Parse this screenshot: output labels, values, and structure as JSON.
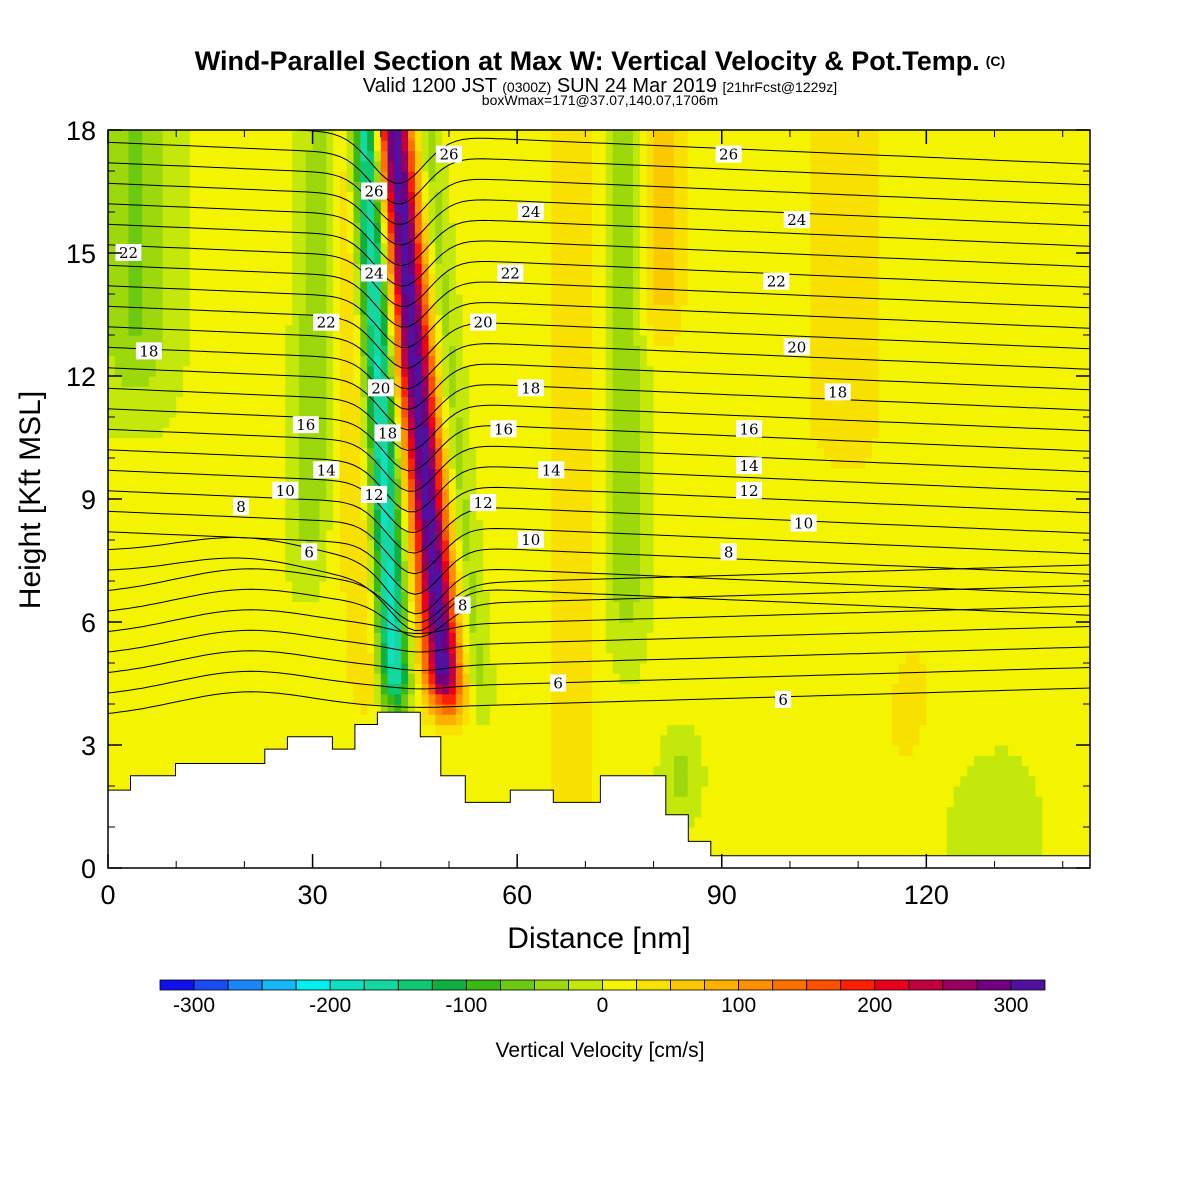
{
  "chart_data": {
    "type": "heatmap",
    "title": "Wind-Parallel Section at Max W: Vertical Velocity & Pot.Temp.",
    "title_mark": "(C)",
    "subtitle_parts": [
      "Valid 1200 JST",
      "(0300Z)",
      "SUN 24 Mar 2019",
      "[21hrFcst@1229z]"
    ],
    "subtitle2": "boxWmax=171@37.07,140.07,1706m",
    "xlabel": "Distance [nm]",
    "ylabel": "Height [Kft MSL]",
    "xlim": [
      0,
      144
    ],
    "ylim": [
      0,
      18
    ],
    "x_ticks": [
      0,
      30,
      60,
      90,
      120
    ],
    "y_ticks": [
      0,
      3,
      6,
      9,
      12,
      15,
      18
    ],
    "x_tick_labels": [
      "0",
      "30",
      "60",
      "90",
      "120"
    ],
    "y_tick_labels": [
      "0",
      "3",
      "6",
      "9",
      "12",
      "15",
      "18"
    ],
    "colorbar": {
      "label": "Vertical Velocity [cm/s]",
      "range": [
        -325,
        325
      ],
      "step": 25,
      "tick_values": [
        -300,
        -200,
        -100,
        0,
        100,
        200,
        300
      ],
      "tick_labels": [
        "-300",
        "-200",
        "-100",
        "0",
        "100",
        "200",
        "300"
      ],
      "colors": [
        "#1010ee",
        "#1a4cf5",
        "#1a86f7",
        "#14b8f6",
        "#00f0f0",
        "#10e0c0",
        "#14d8a0",
        "#10c870",
        "#10b040",
        "#3cb814",
        "#6cc810",
        "#9cd80c",
        "#c4e80c",
        "#f4f400",
        "#f8e000",
        "#fcc800",
        "#fcb000",
        "#fc9000",
        "#fc7000",
        "#fc5000",
        "#fc2000",
        "#e8001c",
        "#c00040",
        "#980060",
        "#700080",
        "#5010a0"
      ]
    },
    "contour_field": "Potential temperature (contour labels, deg C)",
    "contour_labels": [
      {
        "v": "26",
        "x": 50.0,
        "y": 17.4
      },
      {
        "v": "26",
        "x": 39.0,
        "y": 16.5
      },
      {
        "v": "26",
        "x": 91.0,
        "y": 17.4
      },
      {
        "v": "24",
        "x": 39.0,
        "y": 14.5
      },
      {
        "v": "24",
        "x": 62.0,
        "y": 16.0
      },
      {
        "v": "24",
        "x": 101.0,
        "y": 15.8
      },
      {
        "v": "22",
        "x": 3.0,
        "y": 15.0
      },
      {
        "v": "22",
        "x": 32.0,
        "y": 13.3
      },
      {
        "v": "22",
        "x": 59.0,
        "y": 14.5
      },
      {
        "v": "22",
        "x": 98.0,
        "y": 14.3
      },
      {
        "v": "20",
        "x": 40.0,
        "y": 11.7
      },
      {
        "v": "20",
        "x": 55.0,
        "y": 13.3
      },
      {
        "v": "20",
        "x": 101.0,
        "y": 12.7
      },
      {
        "v": "18",
        "x": 6.0,
        "y": 12.6
      },
      {
        "v": "18",
        "x": 41.0,
        "y": 10.6
      },
      {
        "v": "18",
        "x": 62.0,
        "y": 11.7
      },
      {
        "v": "18",
        "x": 107.0,
        "y": 11.6
      },
      {
        "v": "16",
        "x": 29.0,
        "y": 10.8
      },
      {
        "v": "16",
        "x": 58.0,
        "y": 10.7
      },
      {
        "v": "16",
        "x": 94.0,
        "y": 10.7
      },
      {
        "v": "14",
        "x": 32.0,
        "y": 9.7
      },
      {
        "v": "14",
        "x": 65.0,
        "y": 9.7
      },
      {
        "v": "14",
        "x": 94.0,
        "y": 9.8
      },
      {
        "v": "12",
        "x": 39.0,
        "y": 9.1
      },
      {
        "v": "12",
        "x": 55.0,
        "y": 8.9
      },
      {
        "v": "12",
        "x": 94.0,
        "y": 9.2
      },
      {
        "v": "10",
        "x": 26.0,
        "y": 9.2
      },
      {
        "v": "10",
        "x": 62.0,
        "y": 8.0
      },
      {
        "v": "10",
        "x": 102.0,
        "y": 8.4
      },
      {
        "v": "8",
        "x": 19.5,
        "y": 8.8
      },
      {
        "v": "8",
        "x": 52.0,
        "y": 6.4
      },
      {
        "v": "8",
        "x": 91.0,
        "y": 7.7
      },
      {
        "v": "6",
        "x": 29.5,
        "y": 7.7
      },
      {
        "v": "6",
        "x": 66.0,
        "y": 4.5
      },
      {
        "v": "6",
        "x": 99.0,
        "y": 4.1
      }
    ],
    "terrain": [
      [
        0,
        1.9
      ],
      [
        3.3,
        1.9
      ],
      [
        3.3,
        2.25
      ],
      [
        9.9,
        2.25
      ],
      [
        9.9,
        2.55
      ],
      [
        23,
        2.55
      ],
      [
        23,
        2.9
      ],
      [
        26.3,
        2.9
      ],
      [
        26.3,
        3.2
      ],
      [
        32.9,
        3.2
      ],
      [
        32.9,
        2.9
      ],
      [
        36.2,
        2.9
      ],
      [
        36.2,
        3.5
      ],
      [
        39.5,
        3.5
      ],
      [
        39.5,
        3.8
      ],
      [
        45.8,
        3.8
      ],
      [
        45.8,
        3.2
      ],
      [
        48.8,
        3.2
      ],
      [
        48.8,
        2.25
      ],
      [
        52.4,
        2.25
      ],
      [
        52.4,
        1.6
      ],
      [
        59,
        1.6
      ],
      [
        59,
        1.9
      ],
      [
        65.3,
        1.9
      ],
      [
        65.3,
        1.6
      ],
      [
        72.2,
        1.6
      ],
      [
        72.2,
        2.25
      ],
      [
        81.8,
        2.25
      ],
      [
        81.8,
        1.3
      ],
      [
        85.1,
        1.3
      ],
      [
        85.1,
        0.65
      ],
      [
        88.4,
        0.65
      ],
      [
        88.4,
        0.3
      ],
      [
        144,
        0.3
      ]
    ]
  }
}
